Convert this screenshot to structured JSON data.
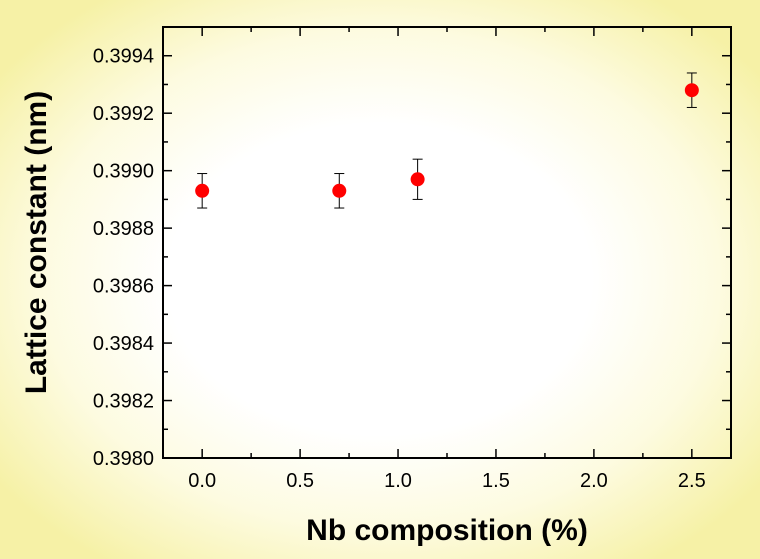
{
  "chart_data": {
    "type": "scatter",
    "xlabel": "Nb composition (%)",
    "ylabel": "Lattice constant (nm)",
    "xlim": [
      -0.2,
      2.7
    ],
    "ylim": [
      0.398,
      0.3995
    ],
    "x_ticks": [
      0.0,
      0.5,
      1.0,
      1.5,
      2.0,
      2.5
    ],
    "x_tick_labels": [
      "0.0",
      "0.5",
      "1.0",
      "1.5",
      "2.0",
      "2.5"
    ],
    "y_ticks": [
      0.398,
      0.3982,
      0.3984,
      0.3986,
      0.3988,
      0.399,
      0.3992,
      0.3994
    ],
    "y_tick_labels": [
      "0.3980",
      "0.3982",
      "0.3984",
      "0.3986",
      "0.3988",
      "0.3990",
      "0.3992",
      "0.3994"
    ],
    "grid": false,
    "marker_color": "#ff0000",
    "points": [
      {
        "x": 0.0,
        "y": 0.39893,
        "err": 6e-05
      },
      {
        "x": 0.7,
        "y": 0.39893,
        "err": 6e-05
      },
      {
        "x": 1.1,
        "y": 0.39897,
        "err": 7e-05
      },
      {
        "x": 2.5,
        "y": 0.39928,
        "err": 6e-05
      }
    ]
  }
}
